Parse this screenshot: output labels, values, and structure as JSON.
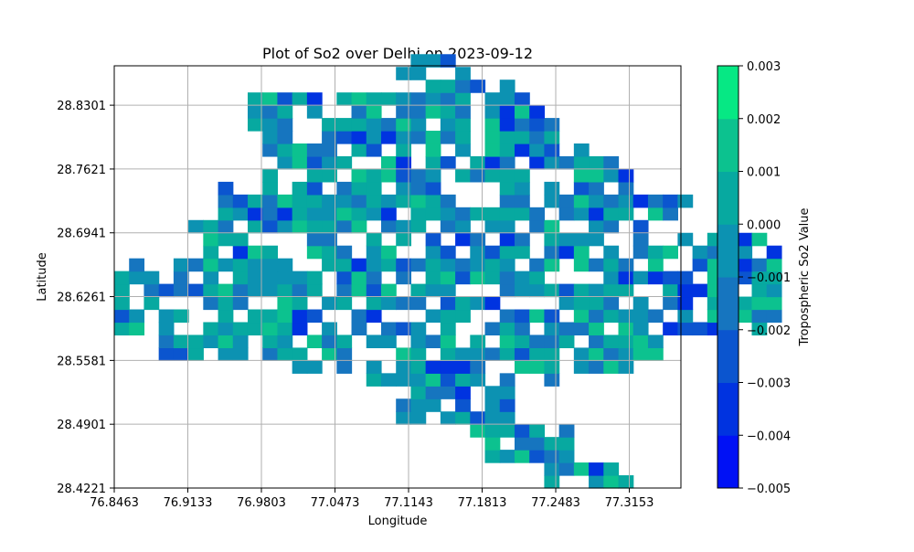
{
  "chart_data": {
    "type": "heatmap",
    "title": "Plot of So2 over Delhi on 2023-09-12",
    "xlabel": "Longitude",
    "ylabel": "Latitude",
    "x_ticks": [
      "76.8463",
      "76.9133",
      "76.9803",
      "77.0473",
      "77.1143",
      "77.1813",
      "77.2483",
      "77.3153"
    ],
    "y_ticks": [
      "28.4221",
      "28.4901",
      "28.5581",
      "28.6261",
      "28.6941",
      "28.7621",
      "28.8301"
    ],
    "xlim": [
      76.8463,
      77.3623
    ],
    "ylim": [
      28.4221,
      28.8721
    ],
    "grid": true,
    "colorbar": {
      "label": "Tropospheric So2 Value",
      "ticks": [
        "0.003",
        "0.002",
        "0.001",
        "0.000",
        "−0.001",
        "−0.002",
        "−0.003",
        "−0.004",
        "−0.005"
      ],
      "levels": [
        -0.005,
        -0.004,
        -0.003,
        -0.002,
        -0.001,
        0.0,
        0.001,
        0.002,
        0.003
      ],
      "colors": [
        "#0011f5",
        "#0033e0",
        "#0b55cf",
        "#1675bf",
        "#0c92b2",
        "#07a9a0",
        "#0cc28f",
        "#06e884"
      ]
    },
    "grid_origin": [
      76.8463,
      28.4221
    ],
    "cell_size_deg": [
      0.0135,
      0.0136
    ],
    "cells": [
      [
        [
          0,
          22,
          6
        ],
        [
          1,
          21,
          5
        ],
        [
          0,
          21,
          5
        ],
        [
          2,
          22,
          5
        ],
        [
          0,
          20,
          5
        ],
        [
          1,
          20,
          5
        ],
        [
          2,
          20,
          4
        ]
      ],
      [
        [
          4,
          18,
          5
        ],
        [
          5,
          18,
          4
        ],
        [
          4,
          17,
          6
        ],
        [
          5,
          17,
          5
        ],
        [
          6,
          17,
          5
        ],
        [
          7,
          17,
          4
        ],
        [
          8,
          17,
          4
        ],
        [
          9,
          17,
          4
        ],
        [
          10,
          17,
          5
        ],
        [
          11,
          17,
          4
        ]
      ],
      [
        [
          3,
          14,
          4
        ],
        [
          4,
          14,
          3
        ],
        [
          5,
          14,
          3
        ],
        [
          6,
          14,
          4
        ],
        [
          7,
          14,
          4
        ],
        [
          8,
          14,
          3
        ],
        [
          9,
          14,
          4
        ],
        [
          10,
          14,
          5
        ],
        [
          11,
          14,
          4
        ],
        [
          12,
          14,
          4
        ],
        [
          13,
          14,
          5
        ],
        [
          14,
          14,
          4
        ],
        [
          15,
          14,
          4
        ],
        [
          16,
          14,
          4
        ]
      ],
      [
        [
          14,
          10,
          5
        ],
        [
          15,
          10,
          4
        ],
        [
          16,
          10,
          4
        ],
        [
          17,
          10,
          3
        ],
        [
          18,
          10,
          3
        ],
        [
          19,
          10,
          4
        ],
        [
          20,
          10,
          4
        ],
        [
          21,
          10,
          5
        ]
      ],
      [
        [
          20,
          6,
          4
        ],
        [
          21,
          6,
          5
        ],
        [
          22,
          6,
          5
        ],
        [
          23,
          6,
          4
        ],
        [
          24,
          6,
          4
        ],
        [
          25,
          6,
          3
        ],
        [
          26,
          6,
          3
        ]
      ],
      [
        [
          26,
          2,
          4
        ],
        [
          27,
          2,
          3
        ],
        [
          28,
          2,
          3
        ],
        [
          29,
          2,
          4
        ],
        [
          30,
          2,
          5
        ],
        [
          31,
          2,
          5
        ]
      ],
      [
        [
          35,
          0,
          4
        ],
        [
          36,
          0,
          5
        ],
        [
          37,
          0,
          5
        ],
        [
          38,
          0,
          4
        ]
      ]
    ],
    "cells_note_removed": true
  }
}
